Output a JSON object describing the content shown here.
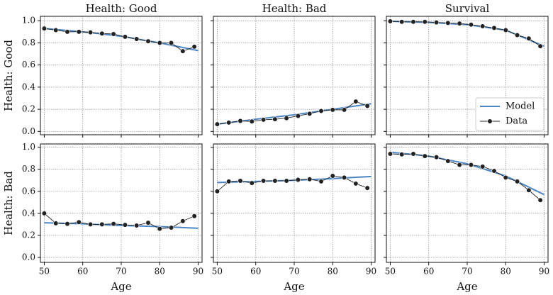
{
  "chart_data": [
    {
      "type": "line",
      "title": "Health: Good",
      "ylabel": "Health: Good",
      "xlim": [
        49,
        91
      ],
      "xticks": [
        50,
        60,
        70,
        80,
        90
      ],
      "ylim": [
        -0.03,
        1.04
      ],
      "yticks": [
        {
          "value": 0,
          "label": "0.0"
        },
        {
          "value": 0.2,
          "label": "0.2"
        },
        {
          "value": 0.4,
          "label": "0.4"
        },
        {
          "value": 0.6,
          "label": "0.6"
        },
        {
          "value": 0.8,
          "label": "0.8"
        },
        {
          "value": 1,
          "label": "1.0"
        }
      ],
      "grid": true,
      "series": [
        {
          "color": "#4a86c5",
          "x": [
            50,
            60,
            70,
            80,
            90
          ],
          "values": [
            0.93,
            0.9,
            0.86,
            0.8,
            0.73
          ]
        },
        {
          "color": "#222222",
          "x": [
            50,
            53,
            56,
            59,
            62,
            65,
            68,
            71,
            74,
            77,
            80,
            83,
            86,
            89
          ],
          "values": [
            0.93,
            0.915,
            0.9,
            0.9,
            0.895,
            0.885,
            0.88,
            0.855,
            0.835,
            0.815,
            0.8,
            0.8,
            0.725,
            0.765
          ]
        }
      ]
    },
    {
      "type": "line",
      "title": "Health: Bad",
      "xlim": [
        49,
        91
      ],
      "xticks": [
        50,
        60,
        70,
        80,
        90
      ],
      "ylim": [
        -0.03,
        1.04
      ],
      "yticks": [
        0,
        0.2,
        0.4,
        0.6,
        0.8,
        1
      ],
      "grid": true,
      "series": [
        {
          "color": "#4a86c5",
          "x": [
            50,
            60,
            70,
            80,
            90
          ],
          "values": [
            0.065,
            0.11,
            0.15,
            0.2,
            0.25
          ]
        },
        {
          "color": "#222222",
          "x": [
            50,
            53,
            56,
            59,
            62,
            65,
            68,
            71,
            74,
            77,
            80,
            83,
            86,
            89
          ],
          "values": [
            0.065,
            0.08,
            0.095,
            0.09,
            0.105,
            0.11,
            0.12,
            0.14,
            0.16,
            0.185,
            0.195,
            0.195,
            0.27,
            0.23
          ]
        }
      ]
    },
    {
      "type": "line",
      "title": "Survival",
      "xlim": [
        49,
        91
      ],
      "xticks": [
        50,
        60,
        70,
        80,
        90
      ],
      "ylim": [
        -0.03,
        1.04
      ],
      "yticks": [
        0,
        0.2,
        0.4,
        0.6,
        0.8,
        1
      ],
      "grid": true,
      "legend": "lower right",
      "series": [
        {
          "name": "Model",
          "color": "#4a86c5",
          "x": [
            50,
            60,
            70,
            80,
            90
          ],
          "values": [
            0.995,
            0.985,
            0.965,
            0.915,
            0.77
          ]
        },
        {
          "name": "Data",
          "color": "#222222",
          "x": [
            50,
            53,
            56,
            59,
            62,
            65,
            68,
            71,
            74,
            77,
            80,
            83,
            86,
            89
          ],
          "values": [
            0.995,
            0.99,
            0.99,
            0.99,
            0.985,
            0.98,
            0.975,
            0.965,
            0.95,
            0.935,
            0.915,
            0.87,
            0.84,
            0.77
          ]
        }
      ]
    },
    {
      "type": "line",
      "ylabel": "Health: Bad",
      "xlabel": "Age",
      "xlim": [
        49,
        91
      ],
      "xticks": [
        50,
        60,
        70,
        80,
        90
      ],
      "ylim": [
        -0.045,
        1.03
      ],
      "yticks": [
        {
          "value": 0,
          "label": "0.0"
        },
        {
          "value": 0.2,
          "label": "0.2"
        },
        {
          "value": 0.4,
          "label": "0.4"
        },
        {
          "value": 0.6,
          "label": "0.6"
        },
        {
          "value": 0.8,
          "label": "0.8"
        },
        {
          "value": 1,
          "label": "1.0"
        }
      ],
      "grid": true,
      "series": [
        {
          "color": "#4a86c5",
          "x": [
            50,
            60,
            70,
            80,
            90
          ],
          "values": [
            0.315,
            0.305,
            0.29,
            0.28,
            0.265
          ]
        },
        {
          "color": "#222222",
          "x": [
            50,
            53,
            56,
            59,
            62,
            65,
            68,
            71,
            74,
            77,
            80,
            83,
            86,
            89
          ],
          "values": [
            0.4,
            0.31,
            0.305,
            0.32,
            0.3,
            0.3,
            0.305,
            0.295,
            0.29,
            0.315,
            0.26,
            0.27,
            0.33,
            0.375
          ]
        }
      ]
    },
    {
      "type": "line",
      "xlabel": "Age",
      "xlim": [
        49,
        91
      ],
      "xticks": [
        50,
        60,
        70,
        80,
        90
      ],
      "ylim": [
        -0.045,
        1.03
      ],
      "yticks": [
        0,
        0.2,
        0.4,
        0.6,
        0.8,
        1
      ],
      "grid": true,
      "series": [
        {
          "color": "#4a86c5",
          "x": [
            50,
            60,
            70,
            80,
            90
          ],
          "values": [
            0.68,
            0.69,
            0.7,
            0.715,
            0.735
          ]
        },
        {
          "color": "#222222",
          "x": [
            50,
            53,
            56,
            59,
            62,
            65,
            68,
            71,
            74,
            77,
            80,
            83,
            86,
            89
          ],
          "values": [
            0.6,
            0.69,
            0.695,
            0.675,
            0.695,
            0.695,
            0.695,
            0.705,
            0.71,
            0.69,
            0.74,
            0.725,
            0.67,
            0.63
          ]
        }
      ]
    },
    {
      "type": "line",
      "xlabel": "Age",
      "xlim": [
        49,
        91
      ],
      "xticks": [
        50,
        60,
        70,
        80,
        90
      ],
      "ylim": [
        -0.045,
        1.03
      ],
      "yticks": [
        0,
        0.2,
        0.4,
        0.6,
        0.8,
        1
      ],
      "grid": true,
      "series": [
        {
          "color": "#4a86c5",
          "x": [
            50,
            60,
            70,
            80,
            90
          ],
          "values": [
            0.955,
            0.92,
            0.85,
            0.74,
            0.57
          ]
        },
        {
          "color": "#222222",
          "x": [
            50,
            53,
            56,
            59,
            62,
            65,
            68,
            71,
            74,
            77,
            80,
            83,
            86,
            89
          ],
          "values": [
            0.94,
            0.935,
            0.94,
            0.92,
            0.91,
            0.875,
            0.84,
            0.84,
            0.825,
            0.785,
            0.725,
            0.69,
            0.61,
            0.52
          ]
        }
      ]
    }
  ]
}
